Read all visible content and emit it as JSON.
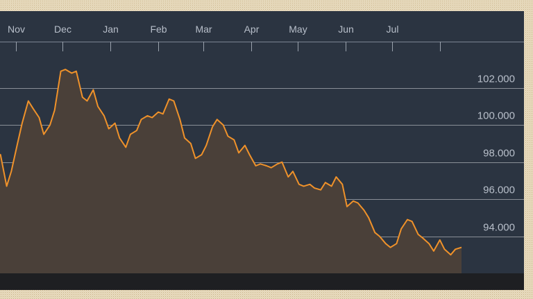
{
  "chart_data": {
    "type": "area",
    "x_tick_labels": [
      "Nov",
      "Dec",
      "Jan",
      "Feb",
      "Mar",
      "Apr",
      "May",
      "Jun",
      "Jul"
    ],
    "y_tick_labels": [
      "94.000",
      "96.000",
      "98.000",
      "100.000",
      "102.000"
    ],
    "y_ticks": [
      94,
      96,
      98,
      100,
      102
    ],
    "ylim": [
      92.0,
      103.9
    ],
    "x": [
      "2015-10-19",
      "2015-10-22",
      "2015-10-26",
      "2015-10-29",
      "2015-11-02",
      "2015-11-05",
      "2015-11-09",
      "2015-11-12",
      "2015-11-16",
      "2015-11-19",
      "2015-11-23",
      "2015-11-26",
      "2015-11-30",
      "2015-12-03",
      "2015-12-07",
      "2015-12-10",
      "2015-12-14",
      "2015-12-17",
      "2015-12-21",
      "2015-12-24",
      "2015-12-28",
      "2015-12-31",
      "2016-01-04",
      "2016-01-07",
      "2016-01-11",
      "2016-01-14",
      "2016-01-18",
      "2016-01-21",
      "2016-01-25",
      "2016-01-28",
      "2016-02-01",
      "2016-02-04",
      "2016-02-08",
      "2016-02-11",
      "2016-02-15",
      "2016-02-18",
      "2016-02-22",
      "2016-02-25",
      "2016-02-29",
      "2016-03-03",
      "2016-03-07",
      "2016-03-10",
      "2016-03-14",
      "2016-03-17",
      "2016-03-21",
      "2016-03-24",
      "2016-03-28",
      "2016-03-31",
      "2016-04-04",
      "2016-04-07",
      "2016-04-11",
      "2016-04-14",
      "2016-04-18",
      "2016-04-21",
      "2016-04-25",
      "2016-04-28",
      "2016-05-02",
      "2016-05-05",
      "2016-05-09",
      "2016-05-12",
      "2016-05-16",
      "2016-05-19",
      "2016-05-23",
      "2016-05-26",
      "2016-05-30",
      "2016-06-02",
      "2016-06-06",
      "2016-06-09",
      "2016-06-13",
      "2016-06-16",
      "2016-06-20",
      "2016-06-23",
      "2016-06-27",
      "2016-06-30",
      "2016-07-04",
      "2016-07-07",
      "2016-07-11",
      "2016-07-14",
      "2016-07-18",
      "2016-07-21",
      "2016-07-25",
      "2016-07-28",
      "2016-08-01",
      "2016-08-04",
      "2016-08-08",
      "2016-08-11",
      "2016-08-15"
    ],
    "values": [
      98.5,
      98.4,
      96.7,
      97.5,
      99.0,
      100.1,
      101.3,
      100.9,
      100.4,
      99.5,
      100.0,
      100.8,
      102.9,
      103.0,
      102.8,
      102.9,
      101.5,
      101.3,
      101.9,
      101.0,
      100.5,
      99.8,
      100.1,
      99.3,
      98.8,
      99.5,
      99.7,
      100.3,
      100.5,
      100.4,
      100.7,
      100.6,
      101.4,
      101.3,
      100.3,
      99.3,
      99.0,
      98.2,
      98.4,
      98.9,
      99.9,
      100.3,
      100.0,
      99.4,
      99.2,
      98.5,
      98.9,
      98.4,
      97.8,
      97.9,
      97.8,
      97.7,
      97.9,
      98.0,
      97.2,
      97.5,
      96.8,
      96.7,
      96.8,
      96.6,
      96.5,
      96.9,
      96.7,
      97.2,
      96.8,
      95.6,
      95.9,
      95.8,
      95.4,
      95.0,
      94.2,
      94.0,
      93.6,
      93.4,
      93.6,
      94.4,
      94.9,
      94.8,
      94.1,
      93.9,
      93.6,
      93.2,
      93.8,
      93.3,
      93.0,
      93.3,
      93.4
    ],
    "line_color": "#f0922a",
    "fill_color": "#4a4039",
    "background_color": "#2b3441",
    "gridlines": true
  }
}
